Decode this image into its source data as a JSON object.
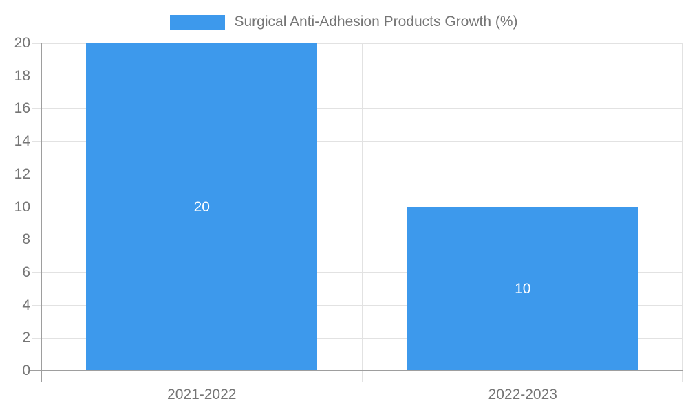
{
  "legend": {
    "label": "Surgical Anti-Adhesion Products Growth (%)"
  },
  "colors": {
    "bar": "#3D99EC",
    "grid": "#E2E2E2",
    "axis": "#9E9E9E",
    "text": "#757575",
    "value_label": "#FFFFFF",
    "background": "#FFFFFF"
  },
  "chart_data": {
    "type": "bar",
    "title": "Surgical Anti-Adhesion Products Growth (%)",
    "categories": [
      "2021-2022",
      "2022-2023"
    ],
    "values": [
      20,
      10
    ],
    "value_labels": [
      "20",
      "10"
    ],
    "series": [
      {
        "name": "Surgical Anti-Adhesion Products Growth (%)",
        "values": [
          20,
          10
        ]
      }
    ],
    "xlabel": "",
    "ylabel": "",
    "ylim": [
      0,
      20
    ],
    "ytick_step": 2,
    "yticks": [
      0,
      2,
      4,
      6,
      8,
      10,
      12,
      14,
      16,
      18,
      20
    ],
    "grid": true,
    "legend_position": "top"
  }
}
